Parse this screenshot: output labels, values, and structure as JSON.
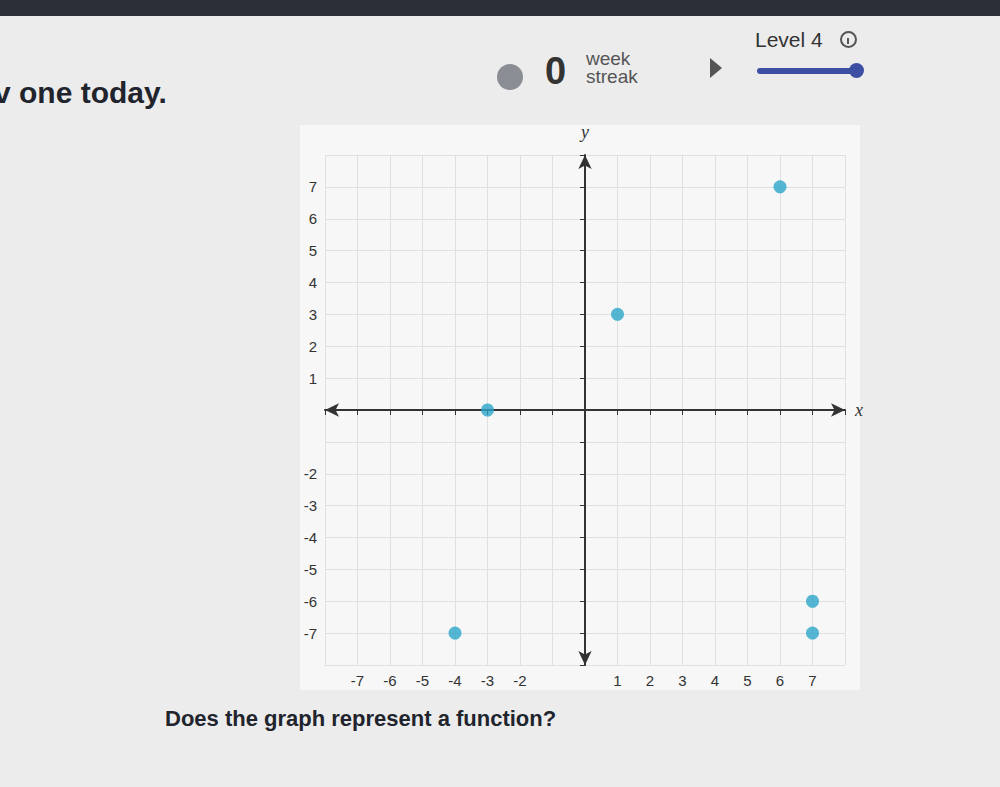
{
  "header": {
    "message": "v one today.",
    "streak": 0,
    "streak_label": [
      "week",
      "streak"
    ],
    "level": "Level 4"
  },
  "question": "Does the graph represent a function?",
  "chart_data": {
    "type": "scatter",
    "x_label": "x",
    "y_label": "y",
    "x": [
      6,
      1,
      -3,
      -4,
      7,
      7
    ],
    "values": [
      7,
      3,
      0,
      -7,
      -6,
      -7
    ],
    "color": "#2ba5c9",
    "marker": "circle",
    "xlim": [
      -8,
      8
    ],
    "xticks": [
      -7,
      -6,
      -5,
      -4,
      -3,
      -2,
      1,
      2,
      3,
      4,
      5,
      6,
      7
    ],
    "ylim": [
      -8,
      8
    ],
    "yticks": [
      -7,
      -6,
      -5,
      -4,
      -3,
      -2,
      1,
      2,
      3,
      4,
      5,
      6,
      7
    ],
    "grid": true
  }
}
